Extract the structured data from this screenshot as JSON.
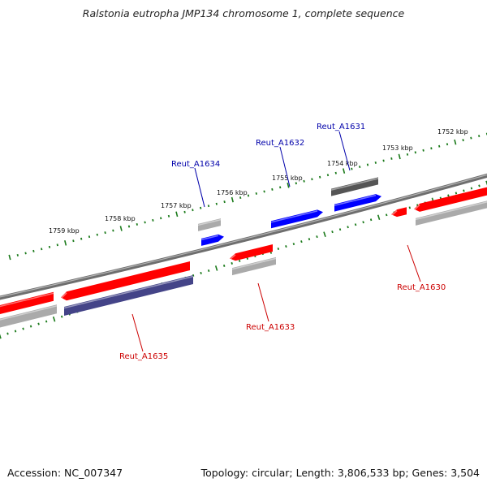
{
  "title": "Ralstonia eutropha JMP134 chromosome 1, complete sequence",
  "footer": {
    "accession": "Accession: NC_007347",
    "summary": "Topology: circular; Length: 3,806,533 bp; Genes: 3,504"
  },
  "colors": {
    "backbone": "#777777",
    "tick": "#1a7a1a",
    "red": "#ff0000",
    "blue": "#0000ff",
    "gray": "#aaaaaa",
    "dark_gray": "#555555",
    "purple": "#444488",
    "label_red": "#cc0000",
    "label_blue": "#0000aa"
  },
  "kbp_labels": [
    "1752 kbp",
    "1753 kbp",
    "1754 kbp",
    "1755 kbp",
    "1756 kbp",
    "1757 kbp",
    "1758 kbp",
    "1759 kbp"
  ],
  "genes": [
    {
      "name": "Reut_A1630",
      "color": "label_red"
    },
    {
      "name": "Reut_A1631",
      "color": "label_blue"
    },
    {
      "name": "Reut_A1632",
      "color": "label_blue"
    },
    {
      "name": "Reut_A1633",
      "color": "label_red"
    },
    {
      "name": "Reut_A1634",
      "color": "label_blue"
    },
    {
      "name": "Reut_A1635",
      "color": "label_red"
    }
  ]
}
